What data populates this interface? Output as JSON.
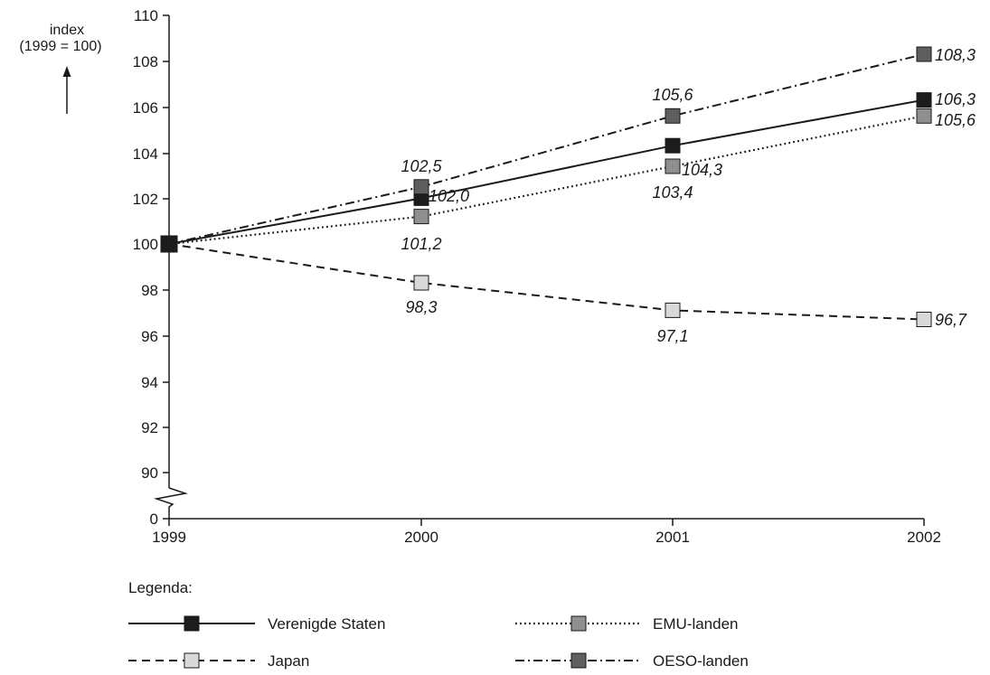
{
  "chart_data": {
    "type": "line",
    "ylabel_line1": "index",
    "ylabel_line2": "(1999 = 100)",
    "x": [
      "1999",
      "2000",
      "2001",
      "2002"
    ],
    "y_ticks": [
      "0",
      "90",
      "92",
      "94",
      "96",
      "98",
      "100",
      "102",
      "104",
      "106",
      "108",
      "110"
    ],
    "ylim": [
      90,
      110
    ],
    "y_axis_break": true,
    "legend_title": "Legenda:",
    "legend_placement": "bottom",
    "series": [
      {
        "name": "Verenigde Staten",
        "values": [
          100,
          102.0,
          104.3,
          106.3
        ],
        "labels": [
          "",
          "102,0",
          "104,3",
          "106,3"
        ],
        "line_style": "solid",
        "marker_color": "#1c1c1c"
      },
      {
        "name": "EMU-landen",
        "values": [
          100,
          101.2,
          103.4,
          105.6
        ],
        "labels": [
          "",
          "101,2",
          "103,4",
          "105,6"
        ],
        "line_style": "dotted",
        "marker_color": "#8f8f8f"
      },
      {
        "name": "Japan",
        "values": [
          100,
          98.3,
          97.1,
          96.7
        ],
        "labels": [
          "",
          "98,3",
          "97,1",
          "96,7"
        ],
        "line_style": "dashed",
        "marker_color": "#d9d9d9"
      },
      {
        "name": "OESO-landen",
        "values": [
          100,
          102.5,
          105.6,
          108.3
        ],
        "labels": [
          "",
          "102,5",
          "105,6",
          "108,3"
        ],
        "line_style": "dash-dot",
        "marker_color": "#5e5e5e"
      }
    ]
  }
}
